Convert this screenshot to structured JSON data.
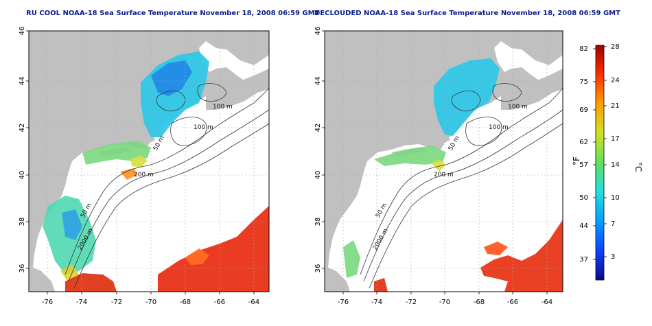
{
  "panels": [
    {
      "id": "left",
      "title": "RU COOL NOAA-18 Sea Surface Temperature November 18, 2008 06:59 GMT",
      "x_ticks": [
        "-76",
        "-74",
        "-72",
        "-70",
        "-68",
        "-66",
        "-64"
      ],
      "y_ticks": [
        "36",
        "38",
        "40",
        "42",
        "44",
        "46"
      ],
      "contour_labels": [
        "100 m",
        "100 m",
        "50 m",
        "200 m",
        "50 m",
        "2000 m"
      ]
    },
    {
      "id": "right",
      "title": "DECLOUDED NOAA-18 Sea Surface Temperature November 18, 2008 06:59 GMT",
      "x_ticks": [
        "-76",
        "-74",
        "-72",
        "-70",
        "-68",
        "-66",
        "-64"
      ],
      "y_ticks": [
        "36",
        "38",
        "40",
        "42",
        "44",
        "46"
      ],
      "contour_labels": [
        "100 m",
        "100 m",
        "50 m",
        "200 m",
        "50 m",
        "2000 m"
      ]
    }
  ],
  "colorbar": {
    "unit_left": "°F",
    "unit_right": "°C",
    "f_ticks": [
      "82",
      "75",
      "69",
      "62",
      "57",
      "50",
      "44",
      "37"
    ],
    "c_ticks": [
      "28",
      "24",
      "21",
      "17",
      "14",
      "10",
      "7",
      "3"
    ],
    "colors": [
      "#0a0a8a",
      "#1040ff",
      "#00a0ff",
      "#20e0e0",
      "#60e060",
      "#d0e020",
      "#ffa000",
      "#ff3000",
      "#a00000"
    ]
  },
  "colors": {
    "land": "#c0c0c0",
    "title": "#0a1a8a",
    "contour": "#333333",
    "grid": "#aaaaaa"
  }
}
